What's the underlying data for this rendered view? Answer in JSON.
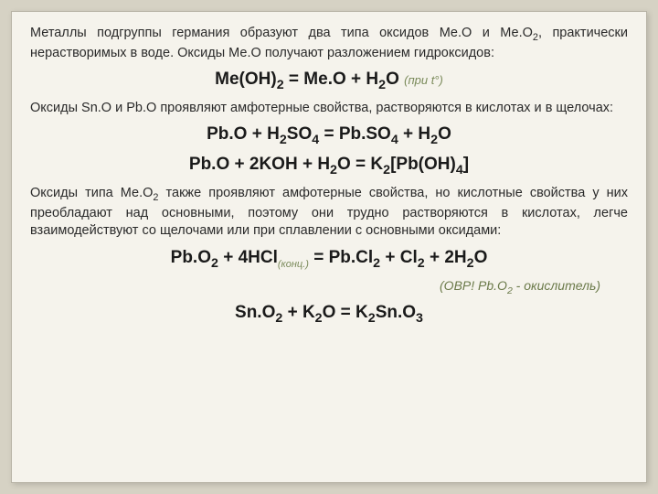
{
  "colors": {
    "page_bg": "#d6d2c4",
    "card_bg": "#f5f3ec",
    "card_border": "#b8b4a6",
    "text": "#2a2a2a",
    "eq_text": "#1a1a1a",
    "cond_text": "#7a8a5a",
    "note_text": "#6b7a4a"
  },
  "typography": {
    "para_fontsize": 14.5,
    "eq_fontsize": 19,
    "cond_fontsize": 13,
    "note_fontsize": 14,
    "font_family": "Arial"
  },
  "p1a": "Металлы подгруппы германия образуют два типа оксидов Ме.О и Ме.О",
  "p1b": ", практически нерастворимых в воде. Оксиды Ме.О получают разложением гидроксидов:",
  "eq1_lhs": "Me(OH)",
  "eq1_mid": " = Me.O + H",
  "eq1_end": "O ",
  "eq1_cond": "(при t°)",
  "p2": "Оксиды Sn.O и Pb.O проявляют амфотерные свойства, растворяются в кислотах и в щелочах:",
  "eq2a": "Pb.O + H",
  "eq2b": "SO",
  "eq2c": " = Pb.SO",
  "eq2d": " + H",
  "eq2e": "O",
  "eq3a": "Pb.O + 2KOH + H",
  "eq3b": "O = K",
  "eq3c": "[Pb(OH)",
  "eq3d": "]",
  "p3a": "Оксиды типа Ме.О",
  "p3b": " также проявляют амфотерные свойства, но кислотные свойства у них преобладают над основными, поэтому они трудно растворяются в кислотах, легче взаимодействуют со щелочами или при сплавлении с основными оксидами:",
  "eq4a": "Pb.O",
  "eq4b": " + 4HCl",
  "eq4conc": "(конц.)",
  "eq4c": " = Pb.Cl",
  "eq4d": " + Cl",
  "eq4e": " + 2H",
  "eq4f": "O",
  "note_a": "(ОВР! Pb.O",
  "note_b": " - окислитель)",
  "eq5a": "Sn.O",
  "eq5b": " + K",
  "eq5c": "O = K",
  "eq5d": "Sn.O",
  "s2": "2",
  "s3": "3",
  "s4": "4"
}
